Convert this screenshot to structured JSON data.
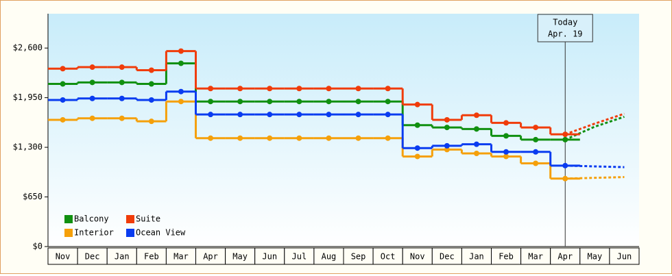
{
  "chart_data": {
    "type": "step-line",
    "categories": [
      "Nov",
      "Dec",
      "Jan",
      "Feb",
      "Mar",
      "Apr",
      "May",
      "Jun",
      "Jul",
      "Aug",
      "Sep",
      "Oct",
      "Nov",
      "Dec",
      "Jan",
      "Feb",
      "Mar",
      "Apr",
      "May",
      "Jun"
    ],
    "series": [
      {
        "name": "Balcony",
        "color": "#109010",
        "values": [
          2130,
          2150,
          2150,
          2130,
          2400,
          1900,
          1900,
          1900,
          1900,
          1900,
          1900,
          1900,
          1590,
          1560,
          1540,
          1450,
          1400,
          1400,
          null,
          null
        ],
        "forecast": [
          null,
          null,
          null,
          null,
          null,
          null,
          null,
          null,
          null,
          null,
          null,
          null,
          null,
          null,
          null,
          null,
          null,
          1400,
          1570,
          1700
        ]
      },
      {
        "name": "Suite",
        "color": "#f03c0a",
        "values": [
          2330,
          2350,
          2350,
          2310,
          2560,
          2070,
          2070,
          2070,
          2070,
          2070,
          2070,
          2070,
          1860,
          1660,
          1720,
          1620,
          1560,
          1470,
          null,
          null
        ],
        "forecast": [
          null,
          null,
          null,
          null,
          null,
          null,
          null,
          null,
          null,
          null,
          null,
          null,
          null,
          null,
          null,
          null,
          null,
          1470,
          1610,
          1740
        ]
      },
      {
        "name": "Interior",
        "color": "#f5a00a",
        "values": [
          1660,
          1680,
          1680,
          1640,
          1900,
          1420,
          1420,
          1420,
          1420,
          1420,
          1420,
          1420,
          1180,
          1270,
          1220,
          1180,
          1090,
          890,
          null,
          null
        ],
        "forecast": [
          null,
          null,
          null,
          null,
          null,
          null,
          null,
          null,
          null,
          null,
          null,
          null,
          null,
          null,
          null,
          null,
          null,
          890,
          900,
          910
        ]
      },
      {
        "name": "Ocean View",
        "color": "#0a3cf0",
        "values": [
          1920,
          1940,
          1940,
          1920,
          2030,
          1730,
          1730,
          1730,
          1730,
          1730,
          1730,
          1730,
          1290,
          1320,
          1340,
          1240,
          1240,
          1060,
          null,
          null
        ],
        "forecast": [
          null,
          null,
          null,
          null,
          null,
          null,
          null,
          null,
          null,
          null,
          null,
          null,
          null,
          null,
          null,
          null,
          null,
          1060,
          1050,
          1040
        ]
      }
    ],
    "ylim": [
      0,
      3050
    ],
    "yticks": [
      {
        "value": 0,
        "label": "$0"
      },
      {
        "value": 650,
        "label": "$650"
      },
      {
        "value": 1300,
        "label": "$1,300"
      },
      {
        "value": 1950,
        "label": "$1,950"
      },
      {
        "value": 2600,
        "label": "$2,600"
      }
    ],
    "annotation": {
      "title": "Today",
      "date": "Apr. 19",
      "category": 17
    },
    "legend": "lower left"
  }
}
